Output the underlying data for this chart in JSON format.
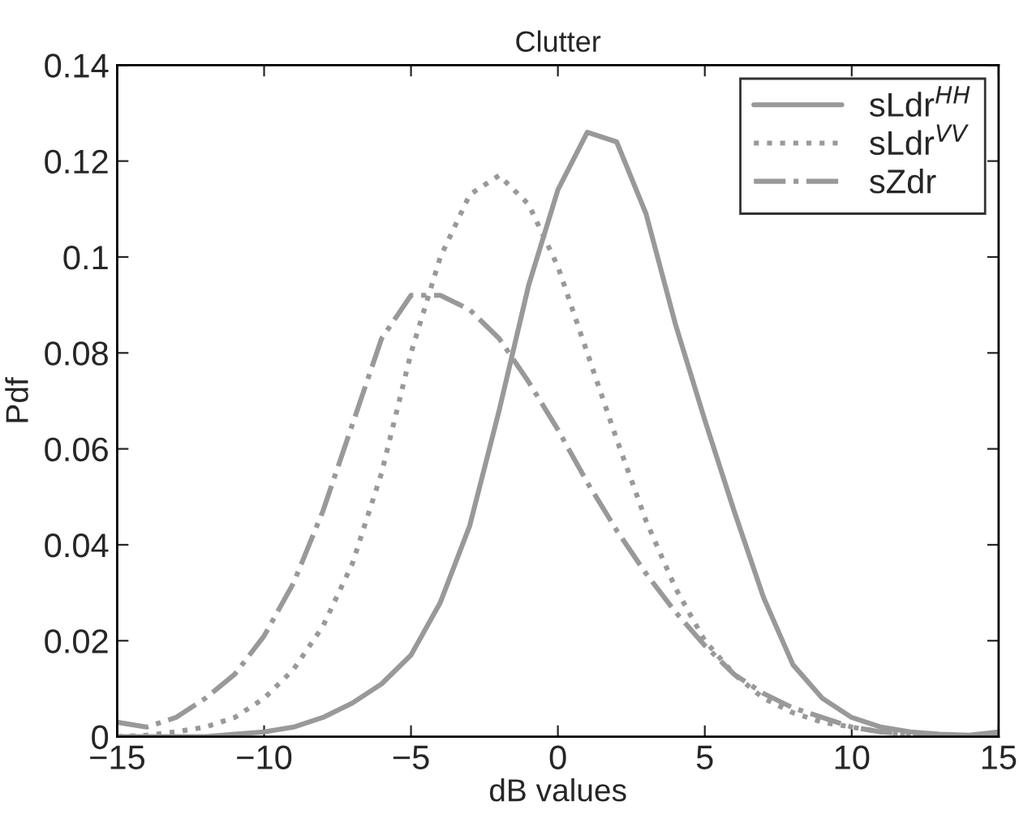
{
  "chart_data": {
    "type": "line",
    "title": "Clutter",
    "xlabel": "dB values",
    "ylabel": "Pdf",
    "x": [
      -15,
      -14,
      -13,
      -12,
      -11,
      -10,
      -9,
      -8,
      -7,
      -6,
      -5,
      -4,
      -3,
      -2,
      -1,
      0,
      1,
      2,
      3,
      4,
      5,
      6,
      7,
      8,
      9,
      10,
      11,
      12,
      13,
      14,
      15
    ],
    "series": [
      {
        "name": "sLdr$^{HH}$",
        "color": "#999999",
        "line_style": "solid",
        "values": [
          0,
          0,
          0,
          0,
          0.0005,
          0.001,
          0.002,
          0.004,
          0.007,
          0.011,
          0.017,
          0.028,
          0.044,
          0.068,
          0.094,
          0.114,
          0.126,
          0.124,
          0.109,
          0.086,
          0.066,
          0.047,
          0.029,
          0.015,
          0.008,
          0.004,
          0.002,
          0.001,
          0.0005,
          0.0003,
          0.001
        ]
      },
      {
        "name": "sLdr$^{VV}$",
        "color": "#999999",
        "line_style": "dotted",
        "values": [
          0,
          0.0003,
          0.001,
          0.002,
          0.004,
          0.008,
          0.014,
          0.023,
          0.036,
          0.055,
          0.08,
          0.1,
          0.113,
          0.117,
          0.111,
          0.098,
          0.08,
          0.062,
          0.045,
          0.031,
          0.02,
          0.013,
          0.008,
          0.005,
          0.003,
          0.002,
          0.001,
          0.0005,
          0,
          0,
          0
        ]
      },
      {
        "name": "sZdr",
        "color": "#999999",
        "line_style": "dashdot",
        "values": [
          0.003,
          0.002,
          0.004,
          0.008,
          0.013,
          0.021,
          0.032,
          0.047,
          0.065,
          0.083,
          0.092,
          0.092,
          0.089,
          0.083,
          0.074,
          0.064,
          0.053,
          0.043,
          0.034,
          0.026,
          0.019,
          0.013,
          0.009,
          0.006,
          0.004,
          0.002,
          0.001,
          0.0005,
          0.0002,
          0.0001,
          0
        ]
      }
    ],
    "xlim": [
      -15,
      15
    ],
    "xticks": [
      {
        "value": -15,
        "label": "−15"
      },
      {
        "value": -10,
        "label": "−10"
      },
      {
        "value": -5,
        "label": "−5"
      },
      0,
      5,
      10,
      15
    ],
    "ylim": [
      0,
      0.14
    ],
    "yticks": [
      0,
      0.02,
      0.04,
      0.06,
      0.08,
      0.1,
      0.12,
      0.14
    ],
    "grid": false,
    "legend": "top right",
    "marker": "none"
  }
}
